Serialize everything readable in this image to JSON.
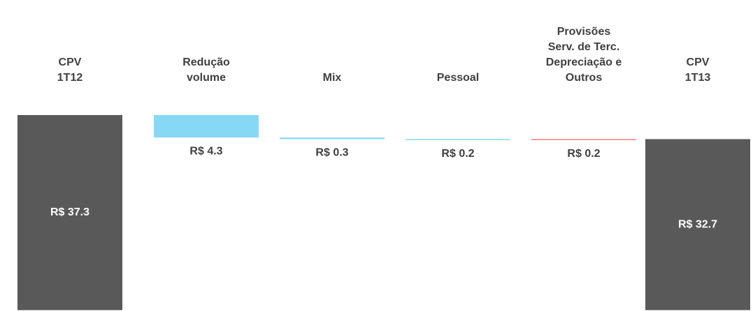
{
  "chart_data": {
    "type": "waterfall",
    "categories": [
      [
        "CPV",
        "1T12"
      ],
      [
        "Redução",
        "volume"
      ],
      [
        "Mix"
      ],
      [
        "Pessoal"
      ],
      [
        "Provisões",
        "Serv. de Terc.",
        "Depreciação e",
        "Outros"
      ],
      [
        "CPV",
        "1T13"
      ]
    ],
    "values": [
      37.3,
      -4.3,
      -0.3,
      -0.2,
      0.2,
      32.7
    ],
    "value_labels": [
      "R$ 37.3",
      "R$ 4.3",
      "R$ 0.3",
      "R$ 0.2",
      "R$ 0.2",
      "R$ 32.7"
    ],
    "colors": [
      "#595959",
      "#87d8f5",
      "#87d8f5",
      "#87d8f5",
      "#f08080",
      "#595959"
    ]
  }
}
